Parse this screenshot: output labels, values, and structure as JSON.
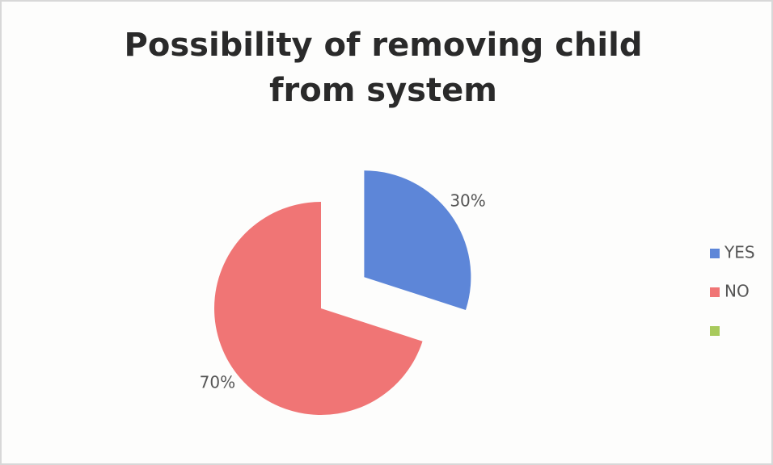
{
  "chart_data": {
    "type": "pie",
    "title": "Possibility of removing child from system",
    "categories": [
      "YES",
      "NO",
      null
    ],
    "values": [
      30,
      70,
      0
    ],
    "value_labels": [
      "30%",
      "70%",
      null
    ],
    "colors": [
      "#5d86d8",
      "#f07575",
      "#a8ca5c"
    ],
    "legend": "right"
  }
}
